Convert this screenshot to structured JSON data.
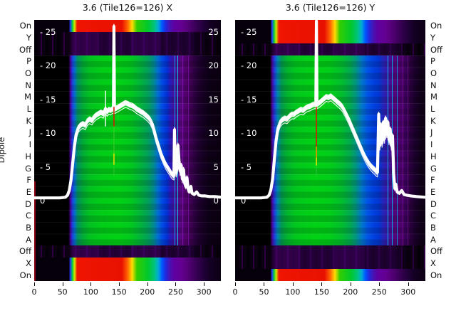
{
  "titles": {
    "left": "3.6 (Tile126=126) X",
    "right": "3.6 (Tile126=126) Y"
  },
  "y_axis": {
    "label": "Dipole",
    "tick_labels_left": [
      "- 25",
      "- 20",
      "- 15",
      "- 10",
      "- 5",
      "0"
    ],
    "tick_labels_right": [
      "25",
      "20",
      "15",
      "10",
      "5",
      "0"
    ],
    "tick_values": [
      25,
      20,
      15,
      10,
      5,
      0
    ]
  },
  "dipole_labels": [
    "On",
    "Y",
    "Off",
    "P",
    "O",
    "N",
    "M",
    "L",
    "K",
    "J",
    "I",
    "H",
    "G",
    "F",
    "E",
    "D",
    "C",
    "B",
    "A",
    "Off",
    "X",
    "On"
  ],
  "x_ticks": [
    0,
    50,
    100,
    150,
    200,
    250,
    300
  ],
  "colors": {
    "background": "#ffffff",
    "panel_background": "#000000",
    "curve": "#ffffff",
    "axis_text": "#000000",
    "inner_tick_text": "#ffffff",
    "heat_green": "#00d214",
    "heat_red": "#e81100",
    "heat_blue": "#0041e1",
    "heat_purple": "#56007d",
    "heat_cyan": "#00c8ff",
    "spike_red": "#d21e00",
    "spike_yellow": "#ffe100",
    "left_edge_red": "#8c0014"
  },
  "chart_data": [
    {
      "type": "heatmap+line",
      "title": "3.6 (Tile126=126) X",
      "x_range": [
        0,
        330
      ],
      "x_ticks": [
        0,
        50,
        100,
        150,
        200,
        250,
        300
      ],
      "y_tick_values": [
        0,
        5,
        10,
        15,
        20,
        25
      ],
      "row_labels": [
        "On",
        "Y",
        "Off",
        "P",
        "O",
        "N",
        "M",
        "L",
        "K",
        "J",
        "I",
        "H",
        "G",
        "F",
        "E",
        "D",
        "C",
        "B",
        "A",
        "Off",
        "X",
        "On"
      ],
      "bright_rows": [
        "On-top",
        "X-bottom",
        "On-bottom"
      ],
      "line": {
        "name": "dipole power traces",
        "points": [
          [
            0,
            0.4
          ],
          [
            25,
            0.4
          ],
          [
            45,
            0.4
          ],
          [
            55,
            0.5
          ],
          [
            59,
            0.8
          ],
          [
            62,
            1.5
          ],
          [
            65,
            3
          ],
          [
            68,
            5.5
          ],
          [
            71,
            8
          ],
          [
            74,
            9.8
          ],
          [
            78,
            10.8
          ],
          [
            82,
            11.2
          ],
          [
            86,
            11.4
          ],
          [
            90,
            11.2
          ],
          [
            94,
            11.8
          ],
          [
            98,
            12.1
          ],
          [
            102,
            11.9
          ],
          [
            106,
            12.4
          ],
          [
            110,
            12.7
          ],
          [
            114,
            12.9
          ],
          [
            118,
            13.1
          ],
          [
            122,
            12.9
          ],
          [
            126,
            13.6
          ],
          [
            129,
            13.2
          ],
          [
            132,
            13.5
          ],
          [
            135,
            13.4
          ],
          [
            138,
            13.6
          ],
          [
            140,
            13.6
          ],
          [
            141,
            25.8
          ],
          [
            142,
            13.6
          ],
          [
            145,
            13.7
          ],
          [
            149,
            13.9
          ],
          [
            153,
            14.1
          ],
          [
            157,
            14.3
          ],
          [
            161,
            14.5
          ],
          [
            165,
            14.4
          ],
          [
            169,
            14.2
          ],
          [
            173,
            14.1
          ],
          [
            177,
            13.9
          ],
          [
            181,
            13.6
          ],
          [
            185,
            13.4
          ],
          [
            189,
            13.2
          ],
          [
            193,
            13
          ],
          [
            197,
            12.7
          ],
          [
            201,
            12.4
          ],
          [
            205,
            12
          ],
          [
            209,
            11.3
          ],
          [
            212,
            10.4
          ],
          [
            215,
            9.4
          ],
          [
            218,
            8.6
          ],
          [
            221,
            7.8
          ],
          [
            224,
            7
          ],
          [
            227,
            6.4
          ],
          [
            230,
            5.8
          ],
          [
            233,
            5.3
          ],
          [
            236,
            4.9
          ],
          [
            239,
            4.5
          ],
          [
            242,
            4.1
          ],
          [
            245,
            3.8
          ],
          [
            247,
            3.7
          ],
          [
            248,
            10.5
          ],
          [
            249,
            6
          ],
          [
            251,
            4.2
          ],
          [
            253,
            5
          ],
          [
            254,
            8.2
          ],
          [
            256,
            6
          ],
          [
            258,
            4.4
          ],
          [
            260,
            5.2
          ],
          [
            262,
            3.2
          ],
          [
            264,
            4.6
          ],
          [
            266,
            2.6
          ],
          [
            268,
            2.1
          ],
          [
            270,
            3.4
          ],
          [
            272,
            1.8
          ],
          [
            274,
            1.3
          ],
          [
            277,
            2.1
          ],
          [
            279,
            1.1
          ],
          [
            283,
            0.9
          ],
          [
            287,
            1.3
          ],
          [
            291,
            0.8
          ],
          [
            296,
            0.7
          ],
          [
            302,
            0.7
          ],
          [
            310,
            0.6
          ],
          [
            320,
            0.6
          ],
          [
            330,
            0.5
          ]
        ]
      },
      "extras": [
        {
          "x": 126,
          "y1": 11,
          "y2": 16.3,
          "color": "#ffffff",
          "w": 1.4,
          "o": 1
        },
        {
          "x": 141,
          "y1": 11,
          "y2": 13.9,
          "color": "#d21e00",
          "w": 1.6,
          "o": 1
        },
        {
          "x": 141,
          "y1": 7,
          "y2": 11,
          "color": "#50d22d",
          "w": 1.2,
          "o": 0.75
        },
        {
          "x": 141,
          "y1": 5.3,
          "y2": 7,
          "color": "#ffe100",
          "w": 1.4,
          "o": 1
        },
        {
          "x": 141,
          "y1": 3.6,
          "y2": 5.3,
          "color": "#3cc82d",
          "w": 1.2,
          "o": 0.7
        }
      ],
      "v_lines": [
        {
          "frac": 0.75,
          "color": "#00b4ff",
          "w": 1,
          "o": 0.9
        },
        {
          "frac": 0.768,
          "color": "#00e1ff",
          "w": 1,
          "o": 0.9
        },
        {
          "frac": 0.795,
          "color": "#8c14c8",
          "w": 1,
          "o": 0.7
        },
        {
          "frac": 0.825,
          "color": "#8c14c8",
          "w": 1,
          "o": 0.55
        }
      ]
    },
    {
      "type": "heatmap+line",
      "title": "3.6 (Tile126=126) Y",
      "x_range": [
        0,
        330
      ],
      "x_ticks": [
        0,
        50,
        100,
        150,
        200,
        250,
        300
      ],
      "y_tick_values": [
        0,
        5,
        10,
        15,
        20,
        25
      ],
      "row_labels": [
        "On",
        "Y",
        "Off",
        "P",
        "O",
        "N",
        "M",
        "L",
        "K",
        "J",
        "I",
        "H",
        "G",
        "F",
        "E",
        "D",
        "C",
        "B",
        "A",
        "Off",
        "X",
        "On"
      ],
      "bright_rows": [
        "On-top",
        "Y-top",
        "On-bottom"
      ],
      "line": {
        "name": "dipole power traces",
        "points": [
          [
            0,
            0.4
          ],
          [
            25,
            0.4
          ],
          [
            45,
            0.4
          ],
          [
            55,
            0.5
          ],
          [
            59,
            0.8
          ],
          [
            62,
            1.6
          ],
          [
            65,
            3.2
          ],
          [
            68,
            6
          ],
          [
            71,
            8.8
          ],
          [
            74,
            10.6
          ],
          [
            78,
            11.6
          ],
          [
            82,
            12
          ],
          [
            86,
            12.2
          ],
          [
            90,
            12.1
          ],
          [
            94,
            12.5
          ],
          [
            98,
            12.8
          ],
          [
            102,
            12.8
          ],
          [
            106,
            13.1
          ],
          [
            110,
            13.3
          ],
          [
            114,
            13.5
          ],
          [
            118,
            13.4
          ],
          [
            122,
            13.7
          ],
          [
            126,
            13.9
          ],
          [
            130,
            14
          ],
          [
            134,
            14.2
          ],
          [
            138,
            14.3
          ],
          [
            140,
            14.3
          ],
          [
            141,
            26.6
          ],
          [
            142,
            14.3
          ],
          [
            146,
            14.5
          ],
          [
            150,
            14.8
          ],
          [
            154,
            15.1
          ],
          [
            158,
            15.4
          ],
          [
            162,
            15.3
          ],
          [
            166,
            15.5
          ],
          [
            170,
            15.2
          ],
          [
            174,
            14.9
          ],
          [
            178,
            14.6
          ],
          [
            182,
            14.3
          ],
          [
            186,
            13.9
          ],
          [
            190,
            13.3
          ],
          [
            194,
            12.6
          ],
          [
            198,
            11.9
          ],
          [
            202,
            11.1
          ],
          [
            206,
            10.3
          ],
          [
            210,
            9.5
          ],
          [
            214,
            8.7
          ],
          [
            218,
            7.9
          ],
          [
            222,
            7.1
          ],
          [
            226,
            6.4
          ],
          [
            230,
            5.8
          ],
          [
            234,
            5.3
          ],
          [
            238,
            4.9
          ],
          [
            242,
            4.6
          ],
          [
            245,
            4.3
          ],
          [
            247,
            4.2
          ],
          [
            249,
            12.8
          ],
          [
            251,
            8.2
          ],
          [
            253,
            11.2
          ],
          [
            255,
            8.6
          ],
          [
            257,
            11.6
          ],
          [
            259,
            9.2
          ],
          [
            261,
            12.2
          ],
          [
            263,
            10
          ],
          [
            265,
            11.6
          ],
          [
            267,
            9
          ],
          [
            269,
            10.6
          ],
          [
            271,
            8.2
          ],
          [
            273,
            9.6
          ],
          [
            275,
            4
          ],
          [
            277,
            1.8
          ],
          [
            279,
            2.4
          ],
          [
            281,
            1.3
          ],
          [
            285,
            1.1
          ],
          [
            289,
            1.5
          ],
          [
            293,
            0.9
          ],
          [
            298,
            0.8
          ],
          [
            305,
            0.7
          ],
          [
            315,
            0.6
          ],
          [
            330,
            0.5
          ]
        ]
      },
      "extras": [
        {
          "x": 141,
          "y1": 8,
          "y2": 13.9,
          "color": "#d21e00",
          "w": 1.6,
          "o": 1
        },
        {
          "x": 141,
          "y1": 6.4,
          "y2": 8,
          "color": "#ff8c00",
          "w": 1.5,
          "o": 1
        },
        {
          "x": 141,
          "y1": 5.2,
          "y2": 6.4,
          "color": "#ffe100",
          "w": 1.4,
          "o": 1
        },
        {
          "x": 141,
          "y1": 3.5,
          "y2": 5.2,
          "color": "#2dc83c",
          "w": 1.2,
          "o": 0.7
        }
      ],
      "v_lines": [
        {
          "frac": 0.8,
          "color": "#00c8ff",
          "w": 1,
          "o": 0.9
        },
        {
          "frac": 0.825,
          "color": "#00c8ff",
          "w": 1,
          "o": 0.85
        },
        {
          "frac": 0.85,
          "color": "#00b4ff",
          "w": 1,
          "o": 0.8
        },
        {
          "frac": 0.88,
          "color": "#8c14c8",
          "w": 1,
          "o": 0.6
        },
        {
          "frac": 0.905,
          "color": "#8c14c8",
          "w": 1,
          "o": 0.5
        }
      ]
    }
  ]
}
